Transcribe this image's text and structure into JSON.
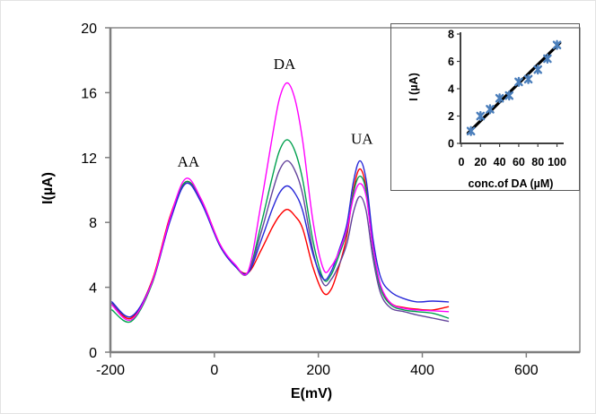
{
  "figure": {
    "background": "#FFFFFF",
    "outer_border_color": "#E3E3E3",
    "plot_border_color": "#4D4D4D",
    "axis_line_color": "#7F7F7F",
    "tick_label_color": "#000000"
  },
  "chart_data": [
    {
      "id": "main_chart",
      "type": "line",
      "title": "",
      "xlabel": "E(mV)",
      "ylabel": "I(µA)",
      "xlim": [
        -200,
        703
      ],
      "ylim": [
        0,
        20
      ],
      "x_ticks": [
        -200,
        0,
        200,
        400,
        600
      ],
      "y_ticks": [
        0,
        4,
        8,
        12,
        16,
        20
      ],
      "grid": false,
      "legend": "none",
      "annotations": [
        {
          "label": "AA",
          "x": -50,
          "y": 11.45
        },
        {
          "label": "DA",
          "x": 135,
          "y": 17.45
        },
        {
          "label": "UA",
          "x": 284,
          "y": 12.85
        }
      ],
      "x": [
        -197,
        -160,
        -120,
        -85,
        -55,
        -25,
        10,
        40,
        65,
        90,
        110,
        125,
        140,
        155,
        170,
        190,
        210,
        225,
        240,
        255,
        268,
        280,
        292,
        305,
        320,
        340,
        365,
        390,
        420,
        450
      ],
      "series": [
        {
          "name": "curve-red",
          "color": "#FE0000",
          "values": [
            3.0,
            2.1,
            4.4,
            8.4,
            10.5,
            9.4,
            6.7,
            5.3,
            4.9,
            6.3,
            7.6,
            8.4,
            8.8,
            8.4,
            7.6,
            5.2,
            3.65,
            3.9,
            5.3,
            7.2,
            10.1,
            11.3,
            10.1,
            6.5,
            4.0,
            3.0,
            2.75,
            2.65,
            2.6,
            2.8
          ]
        },
        {
          "name": "curve-green",
          "color": "#00A04E",
          "values": [
            2.6,
            1.9,
            4.2,
            8.2,
            10.5,
            9.3,
            6.6,
            5.3,
            4.9,
            7.9,
            10.6,
            12.4,
            13.1,
            12.4,
            10.6,
            6.8,
            4.5,
            4.8,
            6.0,
            7.5,
            9.9,
            10.85,
            9.9,
            6.3,
            3.9,
            2.9,
            2.6,
            2.5,
            2.4,
            2.1
          ]
        },
        {
          "name": "curve-purple",
          "color": "#63439B",
          "values": [
            3.0,
            2.2,
            4.3,
            8.2,
            10.4,
            9.3,
            6.6,
            5.3,
            4.9,
            7.4,
            9.7,
            11.2,
            11.8,
            11.2,
            9.7,
            6.2,
            4.2,
            4.5,
            5.4,
            6.7,
            8.7,
            9.6,
            8.7,
            5.8,
            3.6,
            2.7,
            2.5,
            2.3,
            2.1,
            1.9
          ]
        },
        {
          "name": "curve-blue",
          "color": "#2828D8",
          "values": [
            3.1,
            2.2,
            4.3,
            8.1,
            10.4,
            9.2,
            6.6,
            5.3,
            4.9,
            6.9,
            8.7,
            9.8,
            10.25,
            9.8,
            8.7,
            6.0,
            4.5,
            5.0,
            6.3,
            7.9,
            10.6,
            11.8,
            10.6,
            7.0,
            4.6,
            3.7,
            3.3,
            3.1,
            3.15,
            3.1
          ]
        },
        {
          "name": "curve-magenta",
          "color": "#FF00FE",
          "values": [
            2.9,
            2.0,
            4.3,
            8.3,
            10.7,
            9.4,
            6.7,
            5.4,
            5.0,
            9.2,
            13.0,
            15.6,
            16.6,
            15.6,
            13.0,
            8.0,
            5.1,
            5.3,
            6.2,
            7.6,
            9.6,
            10.4,
            9.6,
            6.5,
            4.1,
            3.0,
            2.7,
            2.6,
            2.55,
            2.5
          ]
        }
      ]
    },
    {
      "id": "inset_chart",
      "type": "scatter",
      "title": "",
      "xlabel": "conc.of DA (µM)",
      "ylabel": "I (µA)",
      "xlim": [
        0,
        107
      ],
      "ylim": [
        0,
        8
      ],
      "x_ticks": [
        0,
        20,
        40,
        60,
        80,
        100
      ],
      "y_ticks": [
        0,
        2,
        4,
        6,
        8
      ],
      "grid": false,
      "marker": "x",
      "marker_color": "#4A7EBB",
      "trendline_color": "#000000",
      "points": {
        "x": [
          10,
          20,
          30,
          40,
          50,
          60,
          70,
          80,
          90,
          100
        ],
        "y": [
          0.9,
          2.0,
          2.5,
          3.3,
          3.5,
          4.5,
          4.7,
          5.4,
          6.2,
          7.2
        ]
      },
      "trendline": {
        "x1": 7,
        "y1": 0.75,
        "x2": 103,
        "y2": 7.35
      }
    }
  ]
}
